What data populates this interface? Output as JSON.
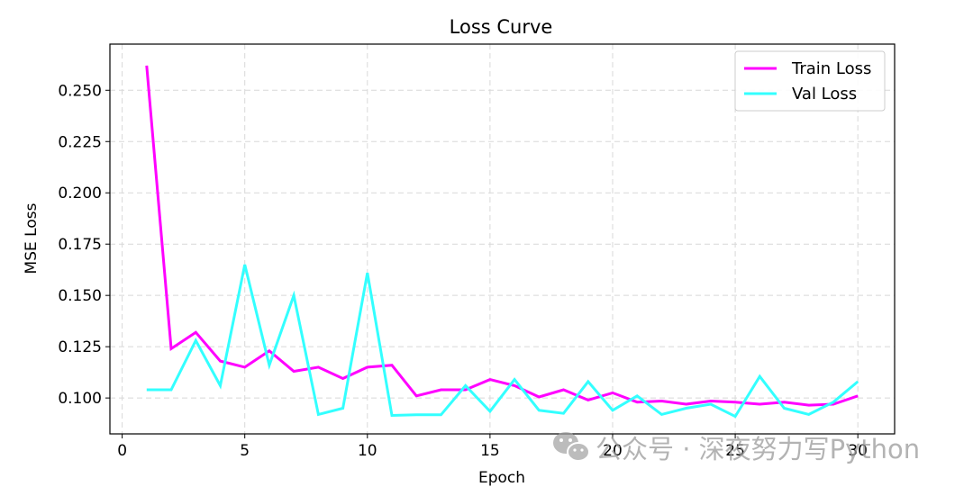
{
  "chart_data": {
    "type": "line",
    "title": "Loss Curve",
    "xlabel": "Epoch",
    "ylabel": "MSE Loss",
    "xlim": [
      -0.5,
      31.5
    ],
    "ylim": [
      0.0825,
      0.2725
    ],
    "xticks": [
      0,
      5,
      10,
      15,
      20,
      25,
      30
    ],
    "yticks": [
      0.1,
      0.125,
      0.15,
      0.175,
      0.2,
      0.225,
      0.25
    ],
    "ytick_labels": [
      "0.100",
      "0.125",
      "0.150",
      "0.175",
      "0.200",
      "0.225",
      "0.250"
    ],
    "grid": true,
    "legend_position": "top-right",
    "x": [
      1,
      2,
      3,
      4,
      5,
      6,
      7,
      8,
      9,
      10,
      11,
      12,
      13,
      14,
      15,
      16,
      17,
      18,
      19,
      20,
      21,
      22,
      23,
      24,
      25,
      26,
      27,
      28,
      29,
      30
    ],
    "series": [
      {
        "name": "Train Loss",
        "color": "#ff00ff",
        "values": [
          0.262,
          0.124,
          0.132,
          0.118,
          0.115,
          0.123,
          0.113,
          0.115,
          0.1095,
          0.115,
          0.116,
          0.101,
          0.104,
          0.104,
          0.109,
          0.106,
          0.1005,
          0.104,
          0.099,
          0.1025,
          0.098,
          0.0985,
          0.097,
          0.0985,
          0.098,
          0.097,
          0.098,
          0.0965,
          0.097,
          0.101
        ]
      },
      {
        "name": "Val Loss",
        "color": "#33ffff",
        "values": [
          0.104,
          0.104,
          0.128,
          0.106,
          0.165,
          0.116,
          0.15,
          0.092,
          0.095,
          0.161,
          0.0915,
          0.0918,
          0.0918,
          0.106,
          0.0935,
          0.109,
          0.094,
          0.0925,
          0.108,
          0.094,
          0.101,
          0.092,
          0.095,
          0.097,
          0.091,
          0.1105,
          0.095,
          0.092,
          0.098,
          0.108
        ]
      }
    ]
  },
  "watermark": {
    "text": "公众号 · 深夜努力写Python",
    "icon": "wechat-icon"
  }
}
